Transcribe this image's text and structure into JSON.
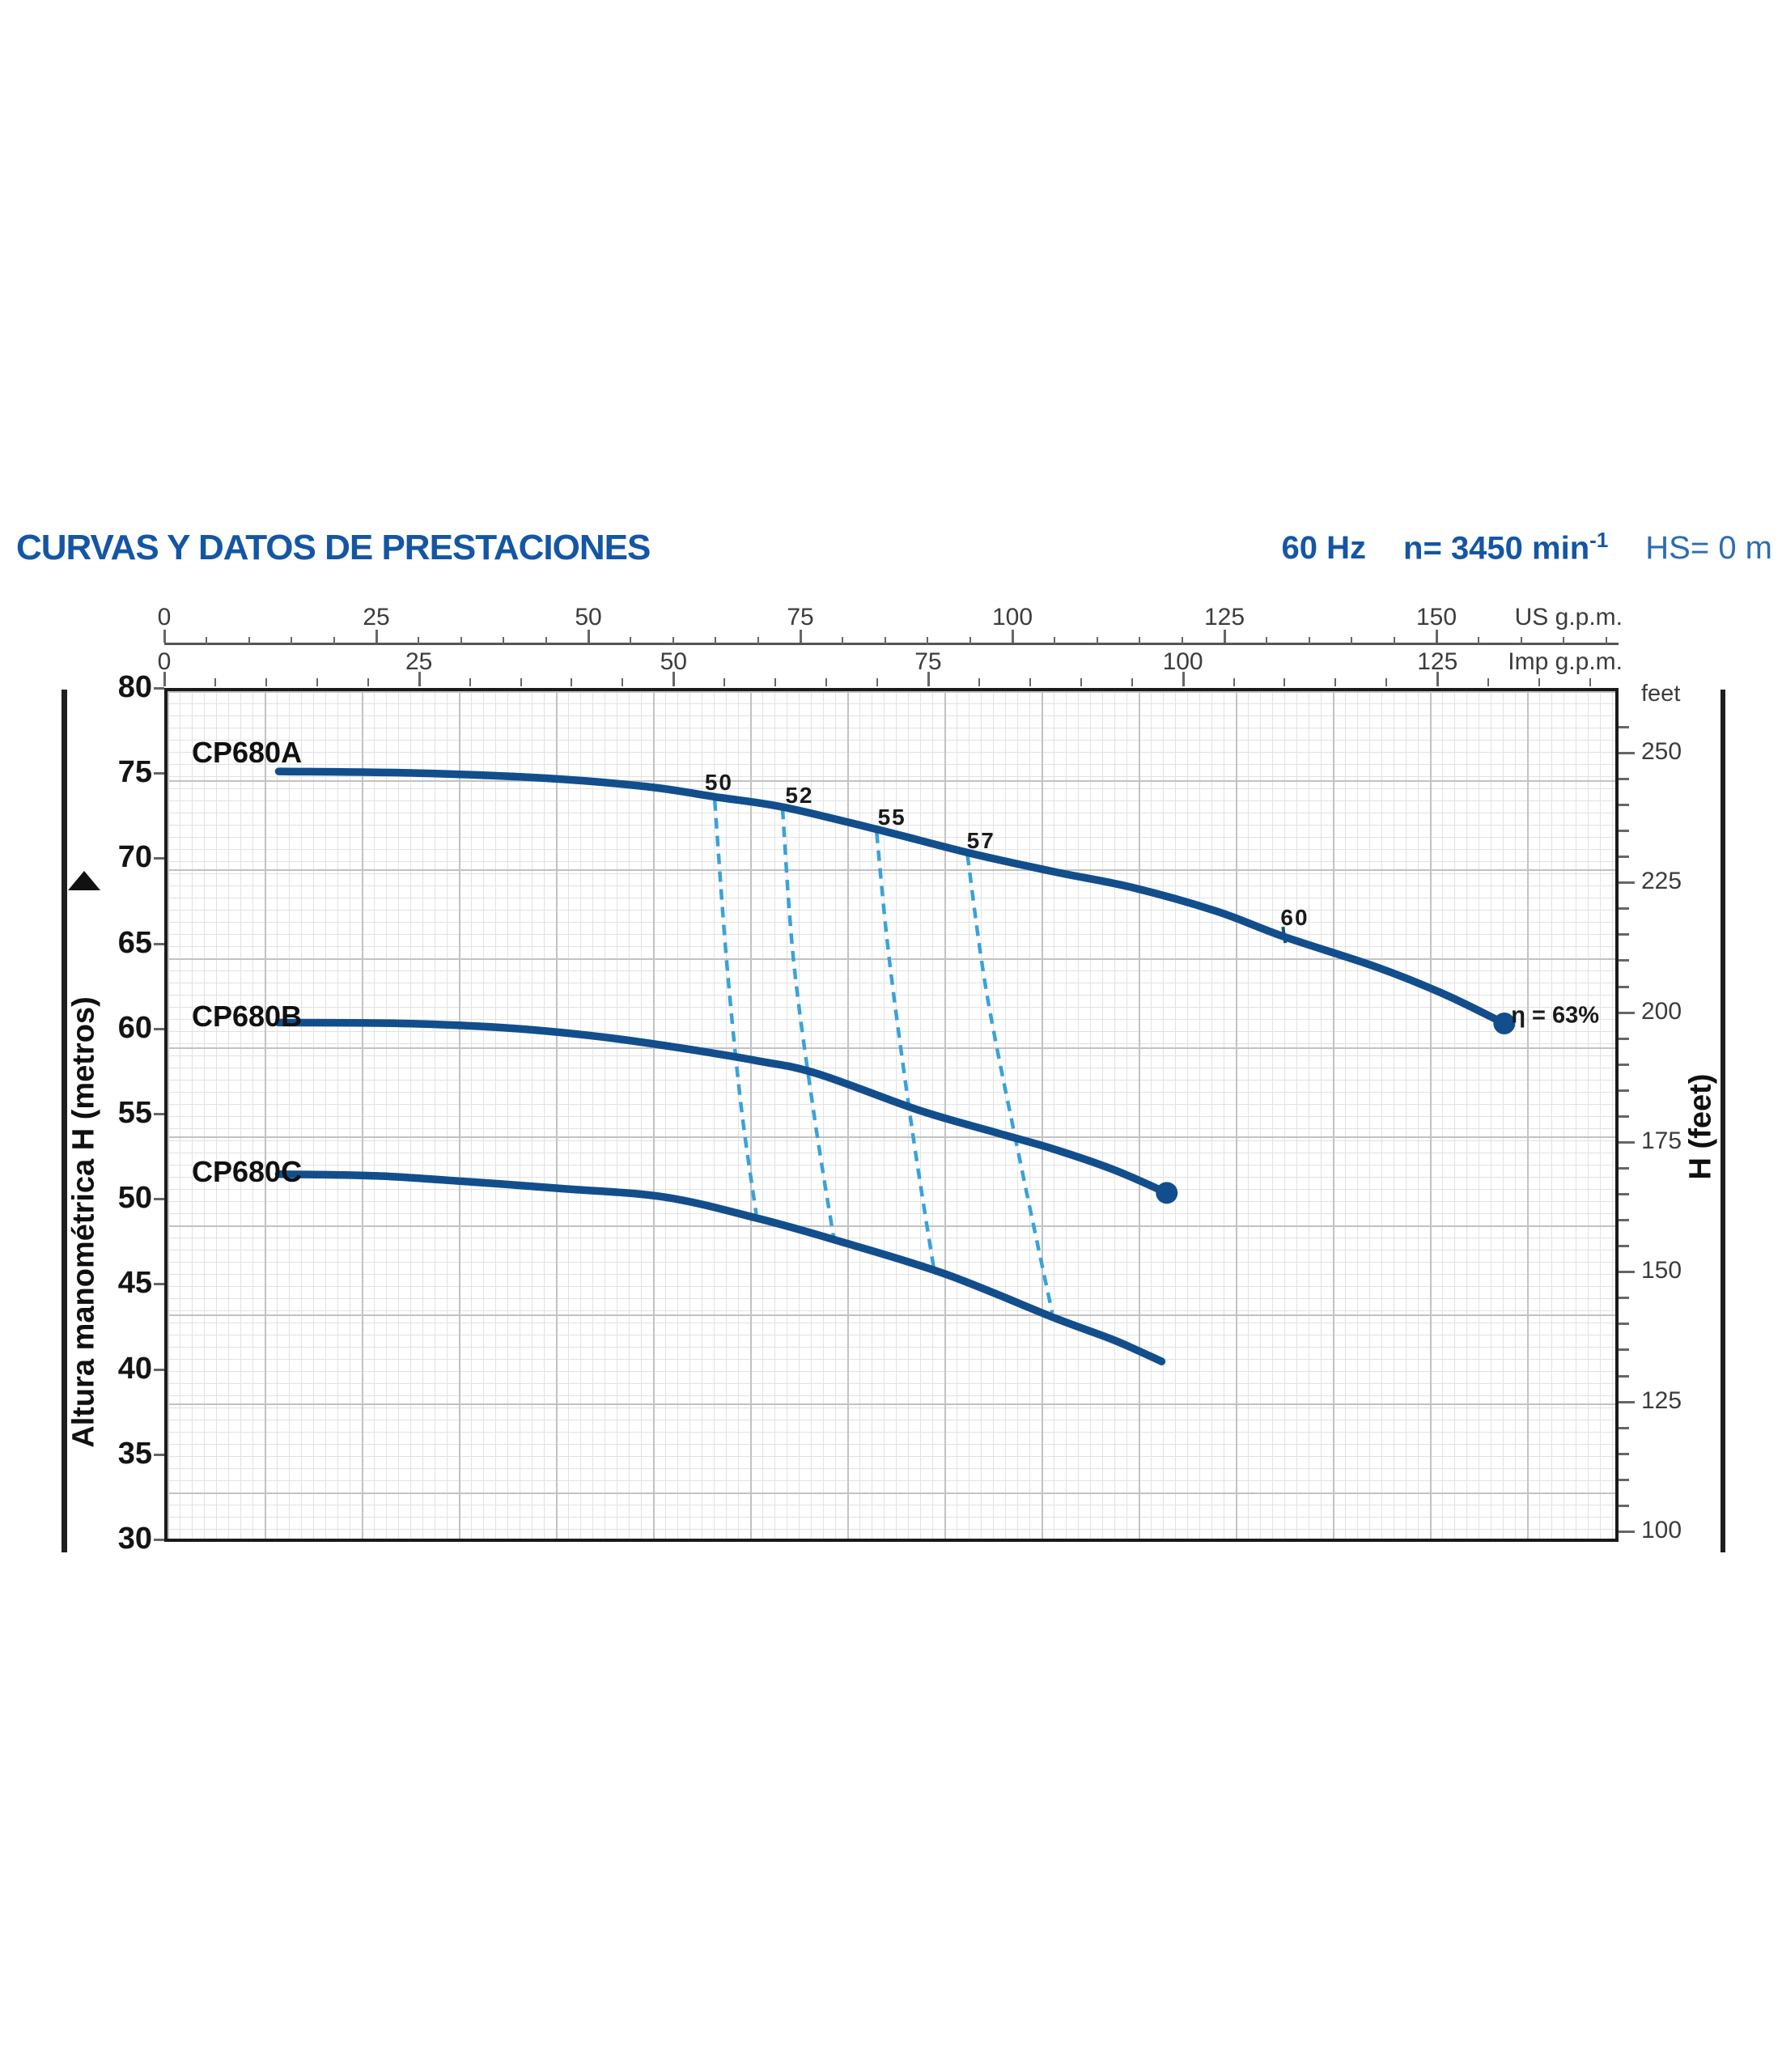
{
  "header": {
    "title": "CURVAS Y DATOS DE PRESTACIONES",
    "frequency": "60 Hz",
    "speed_prefix": "n= 3450 min",
    "speed_exponent": "-1",
    "suction": "HS= 0 m"
  },
  "colors": {
    "title_blue": "#1456a4",
    "spec_blue": "#2b6cb3",
    "curve_blue": "#124e8c",
    "efficiency_dashed_blue": "#3aa2d8",
    "grid_minor": "#e2e2e2",
    "grid_major": "#c2c2c2"
  },
  "axes": {
    "top_primary": {
      "unit": "US g.p.m.",
      "tick_labels": [
        0,
        25,
        50,
        75,
        100,
        125,
        150
      ],
      "minor_step": 5,
      "max_tick": 170
    },
    "top_secondary": {
      "unit": "Imp g.p.m.",
      "tick_labels": [
        0,
        25,
        50,
        75,
        100,
        125
      ],
      "minor_step": 5,
      "max_tick": 140
    },
    "left": {
      "title": "Altura manométrica H (metros)",
      "tick_labels": [
        80,
        75,
        70,
        65,
        60,
        55,
        50,
        45,
        40,
        35,
        30
      ]
    },
    "right": {
      "title": "H (feet)",
      "unit_label": "feet",
      "tick_labels": [
        250,
        225,
        200,
        175,
        150,
        125,
        100
      ],
      "minor_step_ft": 5
    }
  },
  "chart_data": {
    "type": "line",
    "title": "CURVAS Y DATOS DE PRESTACIONES",
    "xlabel_primary": "US g.p.m.",
    "xlabel_secondary": "Imp g.p.m.",
    "ylabel_left": "Altura manométrica H (metros)",
    "ylabel_right": "H (feet)",
    "x_range_usgpm": [
      0,
      170
    ],
    "y_range_m": [
      30,
      80
    ],
    "grid": true,
    "series": [
      {
        "name": "CP680A",
        "label_pos_m": 76.2,
        "end_dot": true,
        "notch": [
          131.9,
          65.45
        ],
        "points": [
          [
            13.5,
            75.1
          ],
          [
            30,
            75.0
          ],
          [
            45,
            74.7
          ],
          [
            57,
            74.2
          ],
          [
            65,
            73.6
          ],
          [
            73,
            73.0
          ],
          [
            84,
            71.7
          ],
          [
            95,
            70.3
          ],
          [
            105,
            69.2
          ],
          [
            114,
            68.3
          ],
          [
            124,
            66.9
          ],
          [
            132,
            65.4
          ],
          [
            143,
            63.6
          ],
          [
            151,
            62.0
          ],
          [
            158,
            60.3
          ]
        ]
      },
      {
        "name": "CP680B",
        "label_pos_m": 60.7,
        "end_dot": true,
        "notch": null,
        "points": [
          [
            13.5,
            60.35
          ],
          [
            28,
            60.3
          ],
          [
            40,
            60.05
          ],
          [
            50,
            59.6
          ],
          [
            59,
            59.0
          ],
          [
            70,
            58.1
          ],
          [
            77,
            57.35
          ],
          [
            89,
            55.2
          ],
          [
            98,
            53.9
          ],
          [
            105,
            52.9
          ],
          [
            112,
            51.7
          ],
          [
            118.2,
            50.35
          ]
        ]
      },
      {
        "name": "CP680C",
        "label_pos_m": 51.6,
        "end_dot": false,
        "notch": null,
        "points": [
          [
            13.5,
            51.45
          ],
          [
            25,
            51.35
          ],
          [
            36,
            51.0
          ],
          [
            47,
            50.6
          ],
          [
            59,
            50.1
          ],
          [
            70,
            48.85
          ],
          [
            79,
            47.6
          ],
          [
            92,
            45.6
          ],
          [
            105,
            43.0
          ],
          [
            112,
            41.7
          ],
          [
            117.6,
            40.45
          ]
        ]
      }
    ],
    "efficiency_lines": [
      {
        "label": "50",
        "points": [
          [
            64.9,
            73.4
          ],
          [
            66.3,
            64.0
          ],
          [
            68.0,
            55.5
          ],
          [
            69.8,
            49.1
          ]
        ]
      },
      {
        "label": "52",
        "points": [
          [
            72.9,
            72.9
          ],
          [
            74.2,
            64.0
          ],
          [
            76.6,
            55.0
          ],
          [
            78.9,
            47.8
          ]
        ]
      },
      {
        "label": "55",
        "points": [
          [
            84.0,
            71.5
          ],
          [
            85.5,
            64.0
          ],
          [
            88.2,
            54.0
          ],
          [
            90.8,
            45.7
          ]
        ]
      },
      {
        "label": "57",
        "points": [
          [
            94.7,
            70.2
          ],
          [
            97.0,
            62.0
          ],
          [
            101.0,
            52.0
          ],
          [
            104.7,
            43.3
          ]
        ]
      }
    ],
    "efficiency_labels": [
      {
        "text": "50",
        "gpm": 65.4,
        "m": 74.45
      },
      {
        "text": "52",
        "gpm": 74.9,
        "m": 73.7
      },
      {
        "text": "55",
        "gpm": 85.8,
        "m": 72.4
      },
      {
        "text": "57",
        "gpm": 96.3,
        "m": 71.0
      },
      {
        "text": "60",
        "gpm": 133.3,
        "m": 66.5
      }
    ],
    "efficiency_end_label": {
      "text": "η = 63%",
      "gpm": 158.8,
      "m": 60.75
    }
  }
}
